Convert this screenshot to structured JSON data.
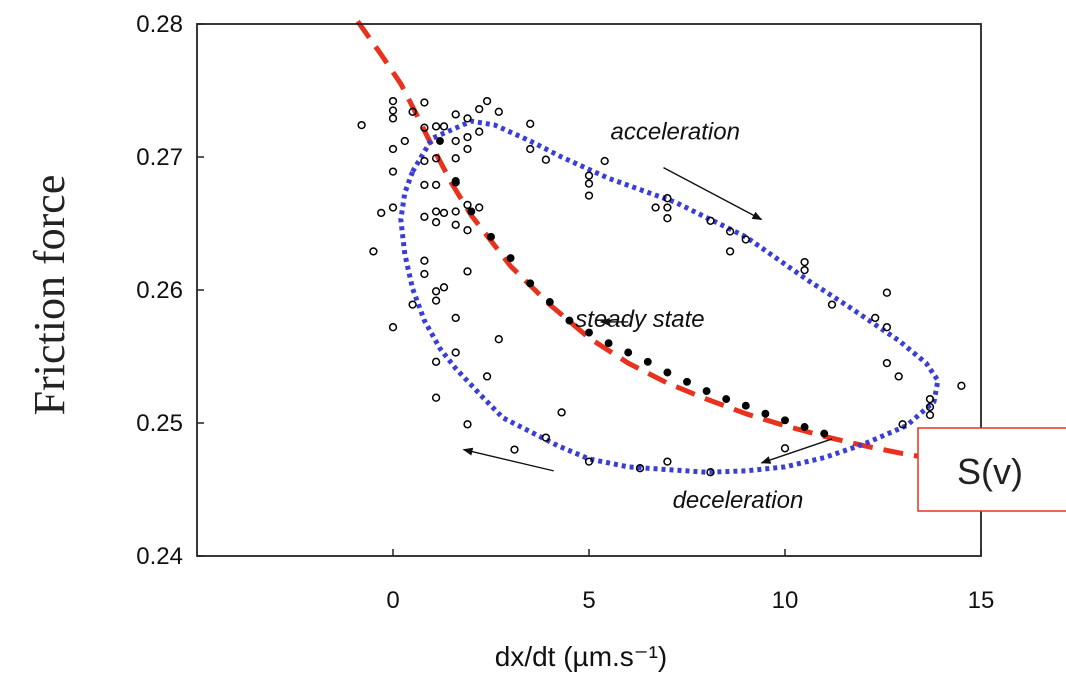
{
  "chart_data": {
    "type": "scatter",
    "xlabel": "dx/dt (µm.s⁻¹)",
    "ylabel": "Friction force",
    "xlim": [
      -5,
      15
    ],
    "ylim": [
      0.24,
      0.28
    ],
    "x_ticks": [
      0,
      5,
      10,
      15
    ],
    "y_ticks": [
      0.24,
      0.25,
      0.26,
      0.27,
      0.28
    ],
    "grid": false,
    "series": [
      {
        "marker": "open-circle",
        "color": "#000000",
        "points": [
          [
            -0.8,
            0.2724
          ],
          [
            -0.5,
            0.2629
          ],
          [
            -0.3,
            0.2658
          ],
          [
            0,
            0.2742
          ],
          [
            0,
            0.2735
          ],
          [
            0,
            0.2729
          ],
          [
            0,
            0.2706
          ],
          [
            0,
            0.2689
          ],
          [
            0,
            0.2662
          ],
          [
            0,
            0.2572
          ],
          [
            0.3,
            0.2712
          ],
          [
            0.5,
            0.2734
          ],
          [
            0.5,
            0.2589
          ],
          [
            0.8,
            0.2741
          ],
          [
            0.8,
            0.2722
          ],
          [
            0.8,
            0.2697
          ],
          [
            0.8,
            0.2679
          ],
          [
            0.8,
            0.2655
          ],
          [
            0.8,
            0.2622
          ],
          [
            0.8,
            0.2612
          ],
          [
            1.1,
            0.2723
          ],
          [
            1.1,
            0.2699
          ],
          [
            1.1,
            0.2679
          ],
          [
            1.1,
            0.2659
          ],
          [
            1.1,
            0.2651
          ],
          [
            1.1,
            0.2599
          ],
          [
            1.1,
            0.2592
          ],
          [
            1.1,
            0.2546
          ],
          [
            1.1,
            0.2519
          ],
          [
            1.3,
            0.2723
          ],
          [
            1.3,
            0.2658
          ],
          [
            1.3,
            0.2602
          ],
          [
            1.6,
            0.2732
          ],
          [
            1.6,
            0.2712
          ],
          [
            1.6,
            0.2699
          ],
          [
            1.6,
            0.2681
          ],
          [
            1.6,
            0.2659
          ],
          [
            1.6,
            0.2649
          ],
          [
            1.6,
            0.2579
          ],
          [
            1.6,
            0.2553
          ],
          [
            1.9,
            0.2729
          ],
          [
            1.9,
            0.2715
          ],
          [
            1.9,
            0.2706
          ],
          [
            1.9,
            0.2664
          ],
          [
            1.9,
            0.2645
          ],
          [
            1.9,
            0.2614
          ],
          [
            1.9,
            0.2499
          ],
          [
            2.2,
            0.2736
          ],
          [
            2.2,
            0.2719
          ],
          [
            2.2,
            0.2662
          ],
          [
            2.4,
            0.2742
          ],
          [
            2.4,
            0.2535
          ],
          [
            2.7,
            0.2734
          ],
          [
            2.7,
            0.2563
          ],
          [
            3.1,
            0.248
          ],
          [
            3.5,
            0.2725
          ],
          [
            3.5,
            0.2706
          ],
          [
            3.9,
            0.2698
          ],
          [
            3.9,
            0.2489
          ],
          [
            4.3,
            0.2508
          ],
          [
            5.0,
            0.2686
          ],
          [
            5.0,
            0.268
          ],
          [
            5.0,
            0.2671
          ],
          [
            5.0,
            0.2471
          ],
          [
            5.4,
            0.2697
          ],
          [
            6.3,
            0.2466
          ],
          [
            6.7,
            0.2662
          ],
          [
            7.0,
            0.2669
          ],
          [
            7.0,
            0.2662
          ],
          [
            7.0,
            0.2654
          ],
          [
            7.0,
            0.2471
          ],
          [
            8.1,
            0.2652
          ],
          [
            8.1,
            0.2463
          ],
          [
            8.6,
            0.2644
          ],
          [
            8.6,
            0.2629
          ],
          [
            9.0,
            0.2638
          ],
          [
            10.0,
            0.2481
          ],
          [
            10.5,
            0.2621
          ],
          [
            10.5,
            0.2615
          ],
          [
            11.2,
            0.2589
          ],
          [
            12.3,
            0.2579
          ],
          [
            12.6,
            0.2598
          ],
          [
            12.6,
            0.2572
          ],
          [
            12.6,
            0.2545
          ],
          [
            12.9,
            0.2535
          ],
          [
            13.0,
            0.2499
          ],
          [
            13.7,
            0.2518
          ],
          [
            13.7,
            0.2512
          ],
          [
            13.7,
            0.2506
          ],
          [
            14.5,
            0.2528
          ]
        ]
      },
      {
        "marker": "filled-circle",
        "color": "#000000",
        "points": [
          [
            1.2,
            0.2712
          ],
          [
            1.6,
            0.2682
          ],
          [
            2.0,
            0.2659
          ],
          [
            2.5,
            0.264
          ],
          [
            3.0,
            0.2624
          ],
          [
            3.5,
            0.2605
          ],
          [
            4.0,
            0.2591
          ],
          [
            4.5,
            0.2577
          ],
          [
            5.0,
            0.2568
          ],
          [
            5.5,
            0.256
          ],
          [
            6.0,
            0.2553
          ],
          [
            6.5,
            0.2546
          ],
          [
            7.0,
            0.2538
          ],
          [
            7.5,
            0.2531
          ],
          [
            8.0,
            0.2524
          ],
          [
            8.5,
            0.2518
          ],
          [
            9.0,
            0.2513
          ],
          [
            9.5,
            0.2507
          ],
          [
            10.0,
            0.2502
          ],
          [
            10.5,
            0.2497
          ],
          [
            11.0,
            0.2492
          ]
        ]
      }
    ],
    "curves": [
      {
        "style": "dashed",
        "color": "#e8321e",
        "points": [
          [
            -0.9,
            0.2802
          ],
          [
            -0.3,
            0.2777
          ],
          [
            0.2,
            0.2755
          ],
          [
            0.6,
            0.2732
          ],
          [
            1.0,
            0.2708
          ],
          [
            1.5,
            0.268
          ],
          [
            2.0,
            0.2656
          ],
          [
            3.0,
            0.2618
          ],
          [
            4.0,
            0.2589
          ],
          [
            5.0,
            0.2564
          ],
          [
            6.0,
            0.2545
          ],
          [
            7.0,
            0.253
          ],
          [
            8.0,
            0.2518
          ],
          [
            9.0,
            0.2507
          ],
          [
            10.0,
            0.2498
          ],
          [
            11.0,
            0.249
          ],
          [
            12.0,
            0.2483
          ],
          [
            13.0,
            0.2477
          ],
          [
            14.0,
            0.2472
          ],
          [
            15.0,
            0.2468
          ],
          [
            15.3,
            0.2467
          ]
        ]
      },
      {
        "style": "dotted",
        "color": "#3a3ed6",
        "closed": true,
        "points": [
          [
            0.5,
            0.2689
          ],
          [
            1.0,
            0.2714
          ],
          [
            2.0,
            0.2727
          ],
          [
            2.6,
            0.2724
          ],
          [
            3.5,
            0.2712
          ],
          [
            4.3,
            0.27
          ],
          [
            5.5,
            0.2684
          ],
          [
            7.2,
            0.2666
          ],
          [
            9.0,
            0.264
          ],
          [
            10.6,
            0.2607
          ],
          [
            11.6,
            0.2588
          ],
          [
            12.9,
            0.2562
          ],
          [
            13.6,
            0.2545
          ],
          [
            13.9,
            0.2532
          ],
          [
            13.8,
            0.2516
          ],
          [
            13.1,
            0.2498
          ],
          [
            12.0,
            0.2484
          ],
          [
            11.0,
            0.2474
          ],
          [
            10.0,
            0.2467
          ],
          [
            9.0,
            0.2464
          ],
          [
            8.0,
            0.2463
          ],
          [
            7.0,
            0.2465
          ],
          [
            6.0,
            0.2467
          ],
          [
            5.0,
            0.2473
          ],
          [
            4.2,
            0.2483
          ],
          [
            3.6,
            0.2492
          ],
          [
            2.8,
            0.2504
          ],
          [
            2.3,
            0.2519
          ],
          [
            1.6,
            0.2541
          ],
          [
            1.2,
            0.2556
          ],
          [
            0.8,
            0.2577
          ],
          [
            0.5,
            0.2601
          ],
          [
            0.3,
            0.2627
          ],
          [
            0.2,
            0.2653
          ],
          [
            0.3,
            0.2673
          ]
        ]
      }
    ],
    "annotations": [
      {
        "text": "acceleration",
        "x": 7.2,
        "y": 0.2713,
        "arrow_from": [
          6.9,
          0.2692
        ],
        "arrow_to": [
          9.4,
          0.2653
        ]
      },
      {
        "text": "steady state",
        "x": 6.3,
        "y": 0.2572,
        "arrow_from": [
          6.0,
          0.2576
        ],
        "arrow_to": [
          5.3,
          0.2576
        ]
      },
      {
        "text": "deceleration",
        "x": 8.8,
        "y": 0.2436,
        "arrow_from": [
          4.1,
          0.2464
        ],
        "arrow_to": [
          1.8,
          0.248
        ]
      },
      {
        "text": "",
        "x": 0,
        "y": 0,
        "arrow_from": [
          11.2,
          0.2488
        ],
        "arrow_to": [
          9.4,
          0.247
        ]
      }
    ],
    "callout_label": "S(v)"
  }
}
